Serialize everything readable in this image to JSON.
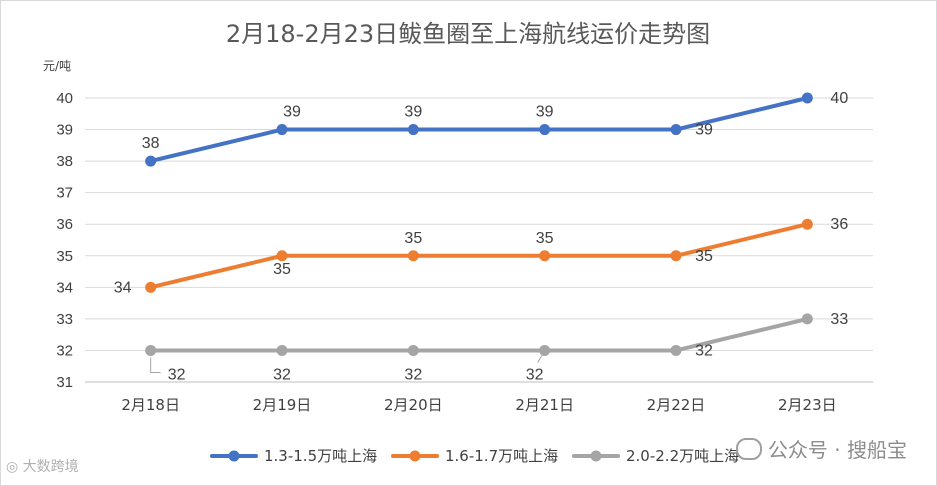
{
  "chart_data": {
    "type": "line",
    "title": "2月18-2月23日鲅鱼圈至上海航线运价走势图",
    "ylabel": "元/吨",
    "categories": [
      "2月18日",
      "2月19日",
      "2月20日",
      "2月21日",
      "2月22日",
      "2月23日"
    ],
    "ylim": [
      31,
      40
    ],
    "yticks": [
      31,
      32,
      33,
      34,
      35,
      36,
      37,
      38,
      39,
      40
    ],
    "grid": true,
    "legend_position": "bottom",
    "series": [
      {
        "name": "1.3-1.5万吨上海",
        "color": "#4472c4",
        "values": [
          38,
          39,
          39,
          39,
          39,
          40
        ]
      },
      {
        "name": "1.6-1.7万吨上海",
        "color": "#ed7d31",
        "values": [
          34,
          35,
          35,
          35,
          35,
          36
        ]
      },
      {
        "name": "2.0-2.2万吨上海",
        "color": "#a5a5a5",
        "values": [
          32,
          32,
          32,
          32,
          32,
          33
        ]
      }
    ]
  },
  "watermarks": {
    "right": "公众号 · 搜船宝",
    "left": "大数跨境",
    "right_icon": "wechat-icon",
    "left_icon": "weibo-icon"
  }
}
